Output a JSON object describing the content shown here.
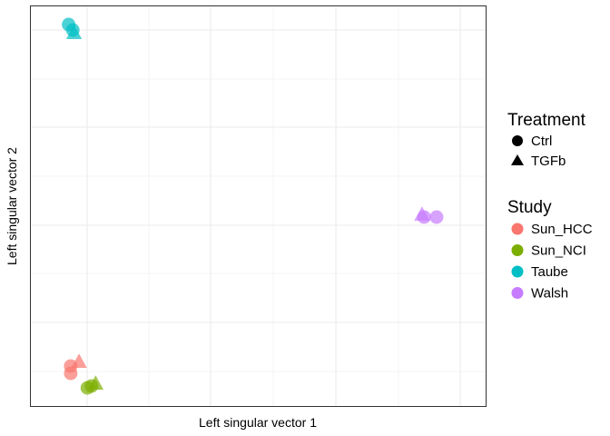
{
  "chart_data": {
    "type": "scatter",
    "title": "",
    "xlabel": "Left singular vector 1",
    "ylabel": "Left singular vector 2",
    "xlim": [
      0,
      1
    ],
    "ylim": [
      0,
      1
    ],
    "x_tick_labels": [],
    "y_tick_labels": [],
    "grid": true,
    "legend_position": "right",
    "legends": [
      {
        "title": "Treatment",
        "entries": [
          {
            "label": "Ctrl",
            "shape": "circle"
          },
          {
            "label": "TGFb",
            "shape": "triangle"
          }
        ]
      },
      {
        "title": "Study",
        "entries": [
          {
            "label": "Sun_HCC",
            "color": "#F8766D"
          },
          {
            "label": "Sun_NCI",
            "color": "#7CAE00"
          },
          {
            "label": "Taube",
            "color": "#00BFC4"
          },
          {
            "label": "Walsh",
            "color": "#C77CFF"
          }
        ]
      }
    ],
    "series": [
      {
        "study": "Sun_HCC",
        "treatment": "Ctrl",
        "color": "#F8766D",
        "shape": "circle",
        "points": [
          [
            0.05,
            0.06
          ],
          [
            0.05,
            0.04
          ]
        ]
      },
      {
        "study": "Sun_HCC",
        "treatment": "TGFb",
        "color": "#F8766D",
        "shape": "triangle",
        "points": [
          [
            0.07,
            0.07
          ]
        ]
      },
      {
        "study": "Sun_NCI",
        "treatment": "Ctrl",
        "color": "#7CAE00",
        "shape": "circle",
        "points": [
          [
            0.09,
            0.0
          ],
          [
            0.1,
            0.005
          ]
        ]
      },
      {
        "study": "Sun_NCI",
        "treatment": "TGFb",
        "color": "#7CAE00",
        "shape": "triangle",
        "points": [
          [
            0.11,
            0.01
          ]
        ]
      },
      {
        "study": "Taube",
        "treatment": "Ctrl",
        "color": "#00BFC4",
        "shape": "circle",
        "points": [
          [
            0.045,
            1.0
          ],
          [
            0.055,
            0.985
          ]
        ]
      },
      {
        "study": "Taube",
        "treatment": "TGFb",
        "color": "#00BFC4",
        "shape": "triangle",
        "points": [
          [
            0.058,
            0.975
          ]
        ]
      },
      {
        "study": "Walsh",
        "treatment": "Ctrl",
        "color": "#C77CFF",
        "shape": "circle",
        "points": [
          [
            0.9,
            0.47
          ],
          [
            0.93,
            0.47
          ]
        ]
      },
      {
        "study": "Walsh",
        "treatment": "TGFb",
        "color": "#C77CFF",
        "shape": "triangle",
        "points": [
          [
            0.895,
            0.475
          ]
        ]
      }
    ]
  }
}
